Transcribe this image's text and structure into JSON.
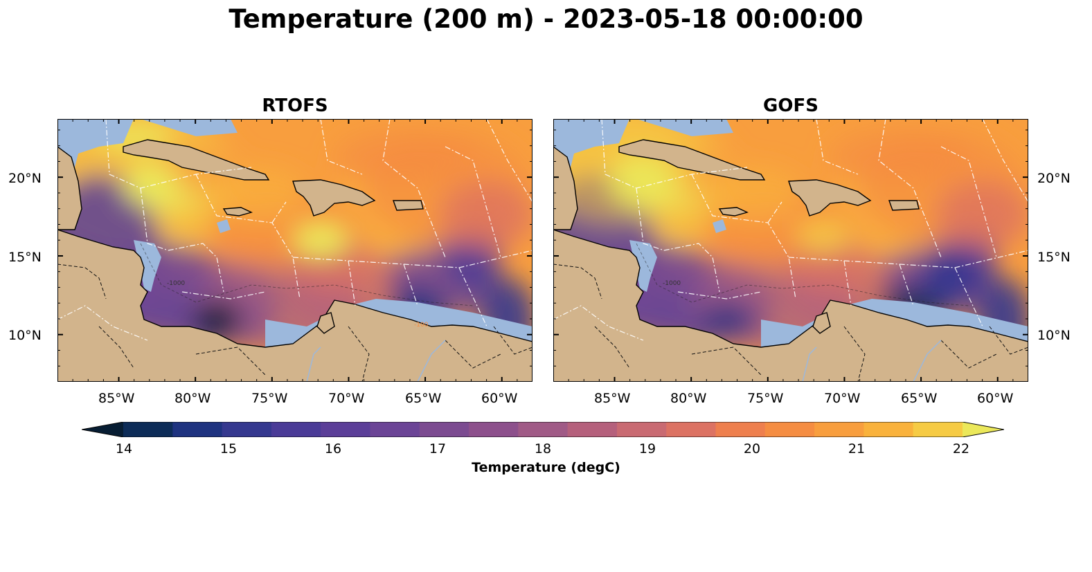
{
  "title": "Temperature (200 m) - 2023-05-18 00:00:00",
  "panels": [
    {
      "id": "rtofs",
      "title": "RTOFS"
    },
    {
      "id": "gofs",
      "title": "GOFS"
    }
  ],
  "map": {
    "lon_range": [
      -89.0,
      -58.0
    ],
    "lat_range": [
      7.0,
      23.7
    ],
    "lon_ticks": [
      {
        "value": -85,
        "label": "85°W"
      },
      {
        "value": -80,
        "label": "80°W"
      },
      {
        "value": -75,
        "label": "75°W"
      },
      {
        "value": -70,
        "label": "70°W"
      },
      {
        "value": -65,
        "label": "65°W"
      },
      {
        "value": -60,
        "label": "60°W"
      }
    ],
    "lat_ticks": [
      {
        "value": 10,
        "label": "10°N"
      },
      {
        "value": 15,
        "label": "15°N"
      },
      {
        "value": 20,
        "label": "20°N"
      }
    ],
    "contour_labels": [
      "-1000",
      "-100"
    ],
    "colors": {
      "land": "#d2b48c",
      "shelf": "#9cb8dc",
      "eez_lines": "#ffffff",
      "coast": "#000000"
    }
  },
  "colorbar": {
    "label": "Temperature (degC)",
    "min": 14,
    "max": 22,
    "step": 0.5,
    "extend": "both",
    "ticks": [
      "14",
      "15",
      "16",
      "17",
      "18",
      "19",
      "20",
      "21",
      "22"
    ],
    "colors": [
      "#071d33",
      "#0d2c58",
      "#1e3380",
      "#35388f",
      "#4a3b97",
      "#5b3e98",
      "#6b4496",
      "#7c4b91",
      "#8d508c",
      "#a05a86",
      "#b5607c",
      "#c96a72",
      "#dc7263",
      "#ee7f4e",
      "#f58d42",
      "#f89e3e",
      "#f9b23c",
      "#f6cb44",
      "#ebe85a"
    ]
  }
}
